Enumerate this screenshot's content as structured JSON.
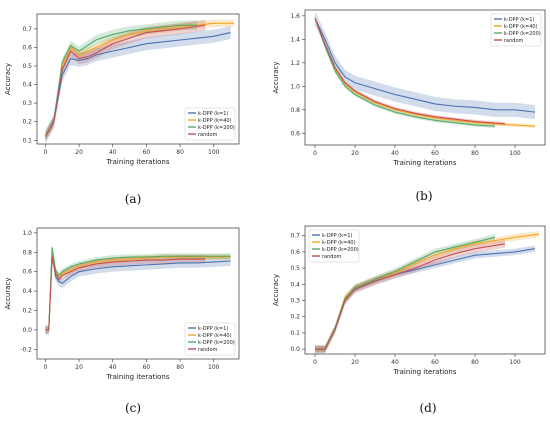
{
  "colors": {
    "k1": "#4c72b0",
    "k40": "#f5a623",
    "k200": "#55a868",
    "random": "#c44e52"
  },
  "chart_data": [
    {
      "id": "a",
      "caption": "(a)",
      "type": "line",
      "xlabel": "Training iterations",
      "ylabel": "Accuracy",
      "xlim": [
        -5,
        115
      ],
      "ylim": [
        0.08,
        0.78
      ],
      "xticks": [
        "0",
        "20",
        "40",
        "60",
        "80",
        "100"
      ],
      "xtick_values": [
        0,
        20,
        40,
        60,
        80,
        100
      ],
      "yticks": [
        "0.1",
        "0.2",
        "0.3",
        "0.4",
        "0.5",
        "0.6",
        "0.7"
      ],
      "ytick_values": [
        0.1,
        0.2,
        0.3,
        0.4,
        0.5,
        0.6,
        0.7
      ],
      "legend_position": "lower-right",
      "series": [
        {
          "name": "k-DPP (k=1)",
          "color_key": "k1",
          "band": 0.035,
          "x": [
            0,
            5,
            10,
            15,
            20,
            25,
            30,
            40,
            50,
            60,
            70,
            80,
            90,
            100,
            110
          ],
          "y": [
            0.12,
            0.2,
            0.45,
            0.54,
            0.53,
            0.54,
            0.56,
            0.58,
            0.6,
            0.62,
            0.63,
            0.64,
            0.65,
            0.66,
            0.68
          ]
        },
        {
          "name": "k-DPP (k=40)",
          "color_key": "k40",
          "band": 0.02,
          "x": [
            0,
            5,
            10,
            15,
            20,
            25,
            30,
            40,
            50,
            60,
            70,
            80,
            90,
            100,
            112
          ],
          "y": [
            0.12,
            0.2,
            0.5,
            0.6,
            0.56,
            0.58,
            0.6,
            0.64,
            0.67,
            0.69,
            0.7,
            0.71,
            0.72,
            0.73,
            0.73
          ]
        },
        {
          "name": "k-DPP (k=200)",
          "color_key": "k200",
          "band": 0.025,
          "x": [
            0,
            5,
            10,
            15,
            20,
            25,
            30,
            40,
            50,
            60,
            70,
            80,
            90
          ],
          "y": [
            0.12,
            0.21,
            0.52,
            0.61,
            0.58,
            0.61,
            0.64,
            0.67,
            0.69,
            0.7,
            0.71,
            0.72,
            0.72
          ]
        },
        {
          "name": "random",
          "color_key": "random",
          "band": 0.03,
          "x": [
            0,
            5,
            10,
            15,
            20,
            25,
            30,
            40,
            50,
            60,
            70,
            80,
            95
          ],
          "y": [
            0.12,
            0.2,
            0.48,
            0.58,
            0.54,
            0.55,
            0.57,
            0.62,
            0.65,
            0.68,
            0.69,
            0.7,
            0.72
          ]
        }
      ]
    },
    {
      "id": "b",
      "caption": "(b)",
      "type": "line",
      "xlabel": "Training iterations",
      "ylabel": "Accuracy",
      "xlim": [
        -5,
        115
      ],
      "ylim": [
        0.5,
        1.65
      ],
      "xticks": [
        "0",
        "20",
        "40",
        "60",
        "80",
        "100"
      ],
      "xtick_values": [
        0,
        20,
        40,
        60,
        80,
        100
      ],
      "yticks": [
        "0.6",
        "0.8",
        "1.0",
        "1.2",
        "1.4",
        "1.6"
      ],
      "ytick_values": [
        0.6,
        0.8,
        1.0,
        1.2,
        1.4,
        1.6
      ],
      "legend_position": "top-right",
      "series": [
        {
          "name": "k-DPP (k=1)",
          "color_key": "k1",
          "band": 0.06,
          "x": [
            0,
            5,
            10,
            15,
            20,
            30,
            40,
            50,
            60,
            70,
            80,
            90,
            100,
            110
          ],
          "y": [
            1.58,
            1.4,
            1.2,
            1.08,
            1.03,
            0.98,
            0.93,
            0.89,
            0.85,
            0.83,
            0.82,
            0.8,
            0.8,
            0.78
          ]
        },
        {
          "name": "k-DPP (k=40)",
          "color_key": "k40",
          "band": 0.015,
          "x": [
            0,
            5,
            10,
            15,
            20,
            30,
            40,
            50,
            60,
            70,
            80,
            90,
            100,
            110
          ],
          "y": [
            1.58,
            1.35,
            1.15,
            1.02,
            0.95,
            0.86,
            0.8,
            0.76,
            0.73,
            0.71,
            0.69,
            0.68,
            0.67,
            0.66
          ]
        },
        {
          "name": "k-DPP (k=200)",
          "color_key": "k200",
          "band": 0.015,
          "x": [
            0,
            5,
            10,
            15,
            20,
            30,
            40,
            50,
            60,
            70,
            80,
            90
          ],
          "y": [
            1.58,
            1.34,
            1.13,
            1.0,
            0.93,
            0.84,
            0.78,
            0.74,
            0.71,
            0.69,
            0.67,
            0.66
          ]
        },
        {
          "name": "random",
          "color_key": "random",
          "band": 0.015,
          "x": [
            0,
            5,
            10,
            15,
            20,
            30,
            40,
            50,
            60,
            70,
            80,
            95
          ],
          "y": [
            1.58,
            1.36,
            1.16,
            1.03,
            0.96,
            0.87,
            0.81,
            0.77,
            0.74,
            0.72,
            0.7,
            0.68
          ]
        }
      ]
    },
    {
      "id": "c",
      "caption": "(c)",
      "type": "line",
      "xlabel": "Training iterations",
      "ylabel": "Accuracy",
      "xlim": [
        -5,
        115
      ],
      "ylim": [
        -0.3,
        1.05
      ],
      "xticks": [
        "0",
        "20",
        "40",
        "60",
        "80",
        "100"
      ],
      "xtick_values": [
        0,
        20,
        40,
        60,
        80,
        100
      ],
      "yticks": [
        "-0.2",
        "0.0",
        "0.2",
        "0.4",
        "0.6",
        "0.8",
        "1.0"
      ],
      "ytick_values": [
        -0.2,
        0.0,
        0.2,
        0.4,
        0.6,
        0.8,
        1.0
      ],
      "legend_position": "lower-right",
      "series": [
        {
          "name": "k-DPP (k=1)",
          "color_key": "k1",
          "band": 0.05,
          "x": [
            0,
            2,
            4,
            6,
            8,
            10,
            15,
            20,
            30,
            40,
            50,
            60,
            70,
            80,
            90,
            100,
            110
          ],
          "y": [
            0.0,
            0.0,
            0.8,
            0.55,
            0.5,
            0.48,
            0.55,
            0.6,
            0.63,
            0.65,
            0.66,
            0.67,
            0.68,
            0.69,
            0.69,
            0.7,
            0.71
          ]
        },
        {
          "name": "k-DPP (k=40)",
          "color_key": "k40",
          "band": 0.03,
          "x": [
            0,
            2,
            4,
            6,
            8,
            10,
            15,
            20,
            30,
            40,
            50,
            60,
            70,
            80,
            90,
            100,
            110
          ],
          "y": [
            0.0,
            0.0,
            0.82,
            0.6,
            0.55,
            0.58,
            0.62,
            0.66,
            0.7,
            0.72,
            0.73,
            0.74,
            0.75,
            0.75,
            0.75,
            0.75,
            0.75
          ]
        },
        {
          "name": "k-DPP (k=200)",
          "color_key": "k200",
          "band": 0.03,
          "x": [
            0,
            2,
            4,
            6,
            8,
            10,
            15,
            20,
            30,
            40,
            50,
            60,
            70,
            80,
            90,
            100,
            110
          ],
          "y": [
            0.0,
            0.0,
            0.85,
            0.62,
            0.56,
            0.6,
            0.65,
            0.68,
            0.72,
            0.74,
            0.75,
            0.75,
            0.76,
            0.76,
            0.76,
            0.76,
            0.76
          ]
        },
        {
          "name": "random",
          "color_key": "random",
          "band": 0.04,
          "x": [
            0,
            2,
            4,
            6,
            8,
            10,
            15,
            20,
            30,
            40,
            50,
            60,
            70,
            80,
            95
          ],
          "y": [
            0.0,
            0.0,
            0.75,
            0.58,
            0.52,
            0.56,
            0.6,
            0.64,
            0.68,
            0.7,
            0.71,
            0.72,
            0.72,
            0.73,
            0.73
          ]
        }
      ]
    },
    {
      "id": "d",
      "caption": "(d)",
      "type": "line",
      "xlabel": "Training iterations",
      "ylabel": "Accuracy",
      "xlim": [
        -5,
        115
      ],
      "ylim": [
        -0.03,
        0.76
      ],
      "xticks": [
        "0",
        "20",
        "40",
        "60",
        "80",
        "100"
      ],
      "xtick_values": [
        0,
        20,
        40,
        60,
        80,
        100
      ],
      "yticks": [
        "0.0",
        "0.1",
        "0.2",
        "0.3",
        "0.4",
        "0.5",
        "0.6",
        "0.7"
      ],
      "ytick_values": [
        0.0,
        0.1,
        0.2,
        0.3,
        0.4,
        0.5,
        0.6,
        0.7
      ],
      "legend_position": "top-left",
      "series": [
        {
          "name": "k-DPP (k=1)",
          "color_key": "k1",
          "band": 0.02,
          "x": [
            0,
            5,
            10,
            15,
            20,
            30,
            40,
            50,
            60,
            70,
            80,
            90,
            100,
            110
          ],
          "y": [
            0.0,
            0.0,
            0.12,
            0.3,
            0.37,
            0.42,
            0.46,
            0.49,
            0.52,
            0.55,
            0.58,
            0.59,
            0.6,
            0.62
          ]
        },
        {
          "name": "k-DPP (k=40)",
          "color_key": "k40",
          "band": 0.02,
          "x": [
            0,
            5,
            10,
            15,
            20,
            30,
            40,
            50,
            60,
            70,
            80,
            90,
            100,
            112
          ],
          "y": [
            0.0,
            0.0,
            0.13,
            0.32,
            0.38,
            0.43,
            0.47,
            0.53,
            0.58,
            0.62,
            0.65,
            0.67,
            0.69,
            0.71
          ]
        },
        {
          "name": "k-DPP (k=200)",
          "color_key": "k200",
          "band": 0.02,
          "x": [
            0,
            5,
            10,
            15,
            20,
            30,
            40,
            50,
            60,
            70,
            80,
            90
          ],
          "y": [
            0.0,
            0.0,
            0.13,
            0.31,
            0.38,
            0.43,
            0.48,
            0.54,
            0.6,
            0.63,
            0.66,
            0.69
          ]
        },
        {
          "name": "random",
          "color_key": "random",
          "band": 0.025,
          "x": [
            0,
            5,
            10,
            15,
            20,
            30,
            40,
            50,
            60,
            70,
            80,
            95
          ],
          "y": [
            0.0,
            0.0,
            0.12,
            0.3,
            0.37,
            0.42,
            0.46,
            0.5,
            0.55,
            0.59,
            0.62,
            0.65
          ]
        }
      ]
    }
  ]
}
